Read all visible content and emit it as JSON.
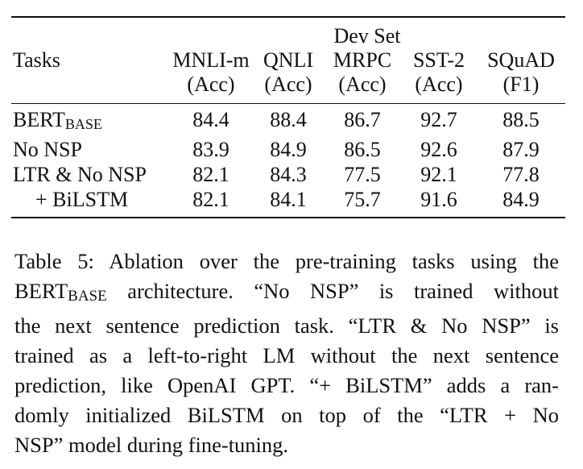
{
  "table": {
    "group_header": "Dev Set",
    "tasks_header": "Tasks",
    "columns": [
      {
        "name": "MNLI-m",
        "metric": "(Acc)"
      },
      {
        "name": "QNLI",
        "metric": "(Acc)"
      },
      {
        "name": "MRPC",
        "metric": "(Acc)"
      },
      {
        "name": "SST-2",
        "metric": "(Acc)"
      },
      {
        "name": "SQuAD",
        "metric": "(F1)"
      }
    ],
    "rows": [
      {
        "label_main": "BERT",
        "label_sub": "BASE",
        "values": [
          "84.4",
          "88.4",
          "86.7",
          "92.7",
          "88.5"
        ]
      },
      {
        "label_main": "No NSP",
        "label_sub": "",
        "values": [
          "83.9",
          "84.9",
          "86.5",
          "92.6",
          "87.9"
        ]
      },
      {
        "label_main": "LTR & No NSP",
        "label_sub": "",
        "values": [
          "82.1",
          "84.3",
          "77.5",
          "92.1",
          "77.8"
        ]
      },
      {
        "label_main": "+ BiLSTM",
        "label_sub": "",
        "values": [
          "82.1",
          "84.1",
          "75.7",
          "91.6",
          "84.9"
        ]
      }
    ]
  },
  "caption": {
    "line1": "Table 5:  Ablation over the pre-training tasks using the",
    "line2_pre": "BERT",
    "line2_sub": "BASE",
    "line2_post": " architecture.  “No NSP” is trained without",
    "line3": "the next sentence prediction task.  “LTR & No NSP” is",
    "line4": "trained as a left-to-right LM without the next sentence",
    "line5": "prediction, like OpenAI GPT. “+ BiLSTM” adds a ran-",
    "line6": "domly initialized BiLSTM on top of the “LTR + No",
    "line7": "NSP” model during fine-tuning."
  }
}
